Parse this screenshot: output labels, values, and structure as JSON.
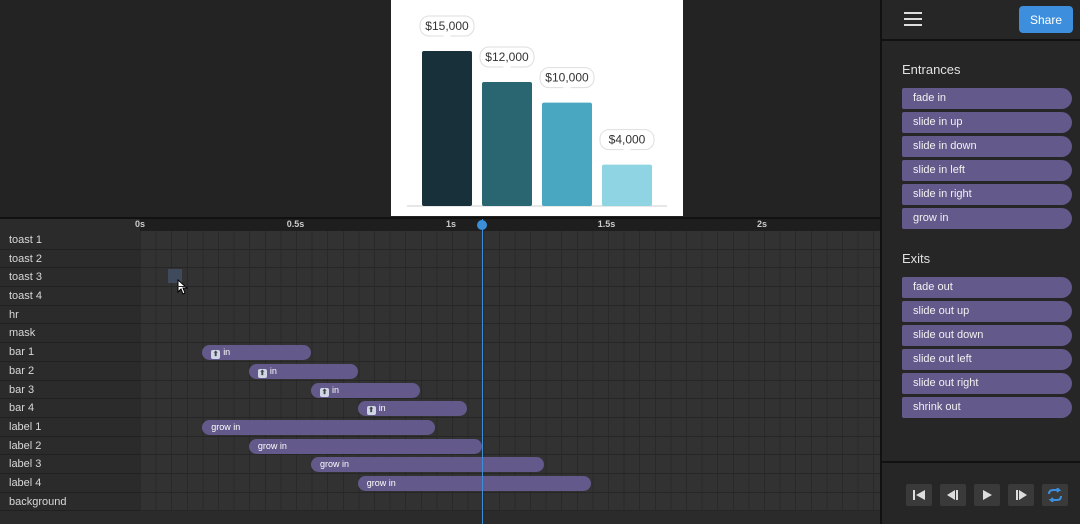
{
  "preview": {
    "chart_data": {
      "type": "bar",
      "categories": [
        "bar 1",
        "bar 2",
        "bar 3",
        "bar 4"
      ],
      "values": [
        15000,
        12000,
        10000,
        4000
      ],
      "labels": [
        "$15,000",
        "$12,000",
        "$10,000",
        "$4,000"
      ],
      "colors": [
        "#173039",
        "#2a6672",
        "#4aa7c1",
        "#8fd4e3"
      ],
      "ylim": [
        0,
        15000
      ]
    }
  },
  "timeline": {
    "ruler": [
      "0s",
      "0.5s",
      "1s",
      "1.5s",
      "2s"
    ],
    "tracks": [
      {
        "name": "toast 1"
      },
      {
        "name": "toast 2"
      },
      {
        "name": "toast 3"
      },
      {
        "name": "toast 4"
      },
      {
        "name": "hr"
      },
      {
        "name": "mask"
      },
      {
        "name": "bar 1",
        "clip": {
          "label": "in",
          "start": 0.2,
          "end": 0.55,
          "icon": true
        }
      },
      {
        "name": "bar 2",
        "clip": {
          "label": "in",
          "start": 0.35,
          "end": 0.7,
          "icon": true
        }
      },
      {
        "name": "bar 3",
        "clip": {
          "label": "in",
          "start": 0.55,
          "end": 0.9,
          "icon": true
        }
      },
      {
        "name": "bar 4",
        "clip": {
          "label": "in",
          "start": 0.7,
          "end": 1.05,
          "icon": true
        }
      },
      {
        "name": "label 1",
        "clip": {
          "label": "grow in",
          "start": 0.2,
          "end": 0.95
        }
      },
      {
        "name": "label 2",
        "clip": {
          "label": "grow in",
          "start": 0.35,
          "end": 1.1
        }
      },
      {
        "name": "label 3",
        "clip": {
          "label": "grow in",
          "start": 0.55,
          "end": 1.3
        }
      },
      {
        "name": "label 4",
        "clip": {
          "label": "grow in",
          "start": 0.7,
          "end": 1.45
        }
      },
      {
        "name": "background"
      }
    ],
    "playhead_time": 1.1
  },
  "sidebar": {
    "share_label": "Share",
    "entrances_title": "Entrances",
    "entrances": [
      "fade in",
      "slide in up",
      "slide in down",
      "slide in left",
      "slide in right",
      "grow in"
    ],
    "exits_title": "Exits",
    "exits": [
      "fade out",
      "slide out up",
      "slide out down",
      "slide out left",
      "slide out right",
      "shrink out"
    ]
  }
}
